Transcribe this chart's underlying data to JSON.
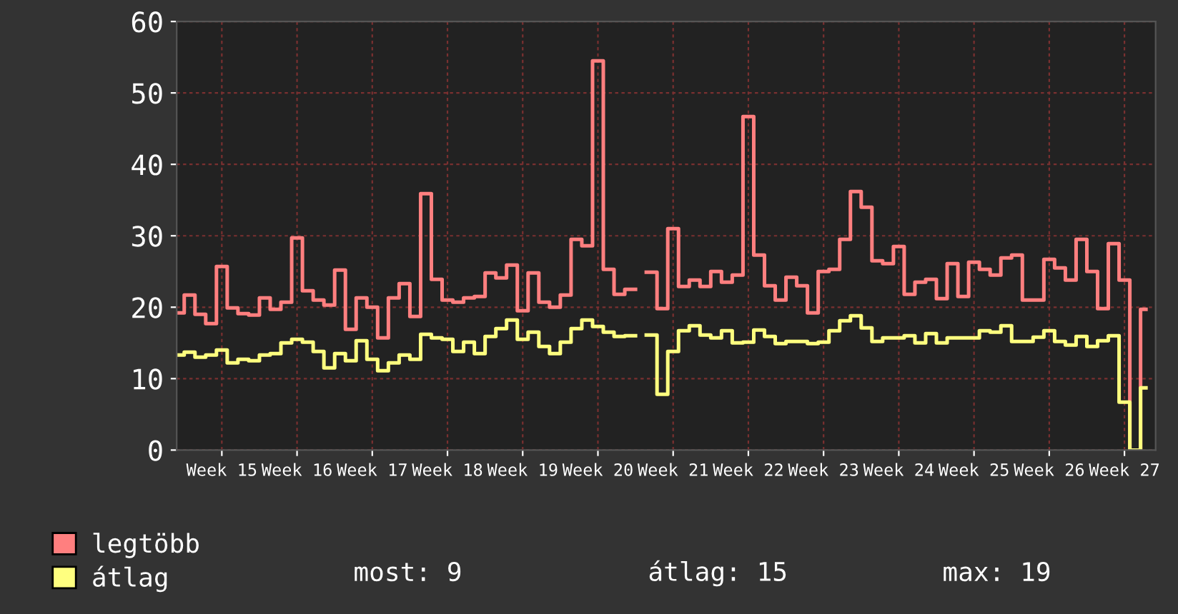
{
  "chart_data": {
    "type": "step",
    "categories": [
      null,
      null,
      null,
      null,
      "Week 15",
      null,
      null,
      null,
      null,
      null,
      null,
      "Week 16",
      null,
      null,
      null,
      null,
      null,
      null,
      "Week 17",
      null,
      null,
      null,
      null,
      null,
      null,
      "Week 18",
      null,
      null,
      null,
      null,
      null,
      null,
      "Week 19",
      null,
      null,
      null,
      null,
      null,
      null,
      "Week 20",
      null,
      null,
      null,
      null,
      null,
      null,
      "Week 21",
      null,
      null,
      null,
      null,
      null,
      null,
      "Week 22",
      null,
      null,
      null,
      null,
      null,
      null,
      "Week 23",
      null,
      null,
      null,
      null,
      null,
      null,
      "Week 24",
      null,
      null,
      null,
      null,
      null,
      null,
      "Week 25",
      null,
      null,
      null,
      null,
      null,
      null,
      "Week 26",
      null,
      null,
      null,
      null,
      null,
      null,
      "Week 27",
      null,
      null
    ],
    "series": [
      {
        "name": "legtöbb",
        "color": "#ff7f7f",
        "values": [
          19.2,
          21.7,
          19,
          17.7,
          25.7,
          19.9,
          19.1,
          18.9,
          21.3,
          19.7,
          20.7,
          29.7,
          22.3,
          21,
          20.3,
          25.2,
          16.9,
          21.3,
          20,
          15.7,
          21.3,
          23.3,
          18.7,
          35.9,
          23.9,
          21,
          20.7,
          21.3,
          21.5,
          24.8,
          24.1,
          25.9,
          19.5,
          24.8,
          20.7,
          20,
          21.7,
          29.5,
          28.6,
          54.5,
          25.3,
          21.8,
          22.5,
          null,
          24.9,
          19.8,
          31,
          22.9,
          23.8,
          22.9,
          25,
          23.5,
          24.5,
          46.7,
          27.3,
          23,
          21,
          24.2,
          23,
          19.2,
          25,
          25.3,
          29.5,
          36.2,
          34,
          26.5,
          26.1,
          28.5,
          21.8,
          23.5,
          23.9,
          21.2,
          26.1,
          21.5,
          26.3,
          25.3,
          24.5,
          26.9,
          27.3,
          21,
          21,
          26.7,
          25.5,
          23.8,
          29.5,
          25,
          19.8,
          28.9,
          23.8,
          0,
          19.7
        ]
      },
      {
        "name": "átlag",
        "color": "#ffff7f",
        "values": [
          13.3,
          13.7,
          13,
          13.3,
          14,
          12.2,
          12.7,
          12.5,
          13.3,
          13.5,
          15,
          15.5,
          15.1,
          13.8,
          11.5,
          13.5,
          12.5,
          15.3,
          12.7,
          11.1,
          12.2,
          13.3,
          12.7,
          16.2,
          15.7,
          15.5,
          13.8,
          15.1,
          13.5,
          15.9,
          17,
          18.2,
          15.5,
          16.5,
          14.5,
          13.5,
          15.1,
          17,
          18.2,
          17.3,
          16.5,
          15.9,
          16,
          null,
          16.1,
          7.8,
          13.8,
          16.7,
          17.4,
          16.1,
          15.7,
          16.7,
          15,
          15.1,
          16.8,
          15.9,
          14.9,
          15.2,
          15.2,
          14.9,
          15.1,
          16.7,
          18.1,
          18.8,
          17.1,
          15.2,
          15.7,
          15.7,
          16,
          15,
          16.3,
          15,
          15.7,
          15.7,
          15.7,
          16.7,
          16.5,
          17.4,
          15.2,
          15.2,
          15.8,
          16.7,
          15.2,
          14.7,
          15.9,
          14.5,
          15.3,
          16,
          6.7,
          0,
          8.7
        ]
      }
    ],
    "ylim": [
      0,
      60
    ],
    "yticks": [
      0,
      10,
      20,
      30,
      40,
      50,
      60
    ],
    "grid": true,
    "legend": "bottom left",
    "annotations": [
      "most: 9",
      "átlag: 15",
      "max: 19"
    ]
  }
}
